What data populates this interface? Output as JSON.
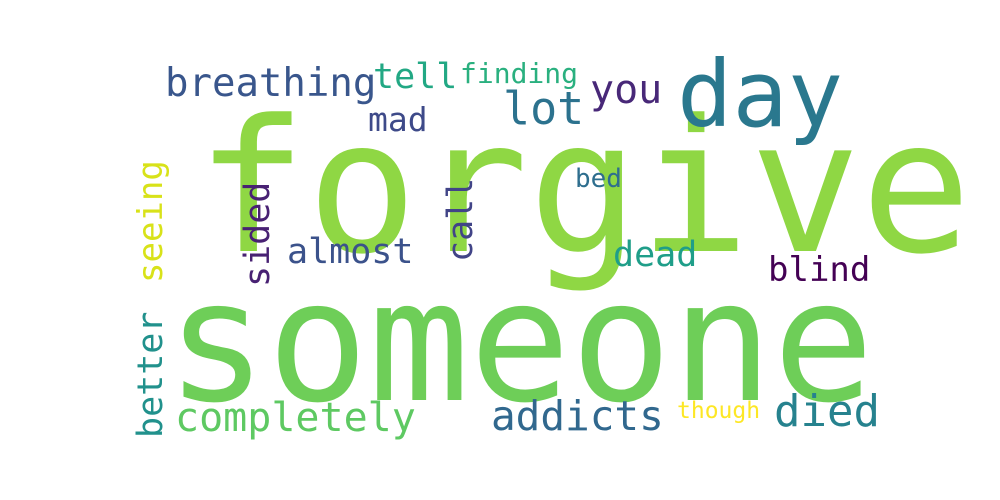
{
  "word_cloud": {
    "words": [
      {
        "key": "forgive",
        "text": "forgive",
        "color": "#8fd744"
      },
      {
        "key": "someone",
        "text": "someone",
        "color": "#6ece58"
      },
      {
        "key": "day",
        "text": "day",
        "color": "#2a788e"
      },
      {
        "key": "breathing",
        "text": "breathing",
        "color": "#39568c"
      },
      {
        "key": "tell",
        "text": "tell",
        "color": "#22a884"
      },
      {
        "key": "finding",
        "text": "finding",
        "color": "#2ab07f"
      },
      {
        "key": "you",
        "text": "you",
        "color": "#482878"
      },
      {
        "key": "mad",
        "text": "mad",
        "color": "#3e4a89"
      },
      {
        "key": "lot",
        "text": "lot",
        "color": "#2c728e"
      },
      {
        "key": "seeing",
        "text": "seeing",
        "color": "#d8e219"
      },
      {
        "key": "sided",
        "text": "sided",
        "color": "#482173"
      },
      {
        "key": "call",
        "text": "call",
        "color": "#414487"
      },
      {
        "key": "bed",
        "text": "bed",
        "color": "#2e6e8e"
      },
      {
        "key": "almost",
        "text": "almost",
        "color": "#3b528b"
      },
      {
        "key": "dead",
        "text": "dead",
        "color": "#1f9e89"
      },
      {
        "key": "blind",
        "text": "blind",
        "color": "#440154"
      },
      {
        "key": "better",
        "text": "better",
        "color": "#21918c"
      },
      {
        "key": "completely",
        "text": "completely",
        "color": "#5ec962"
      },
      {
        "key": "addicts",
        "text": "addicts",
        "color": "#31688e"
      },
      {
        "key": "though",
        "text": "though",
        "color": "#fde725"
      },
      {
        "key": "died",
        "text": "died",
        "color": "#26828e"
      }
    ]
  }
}
